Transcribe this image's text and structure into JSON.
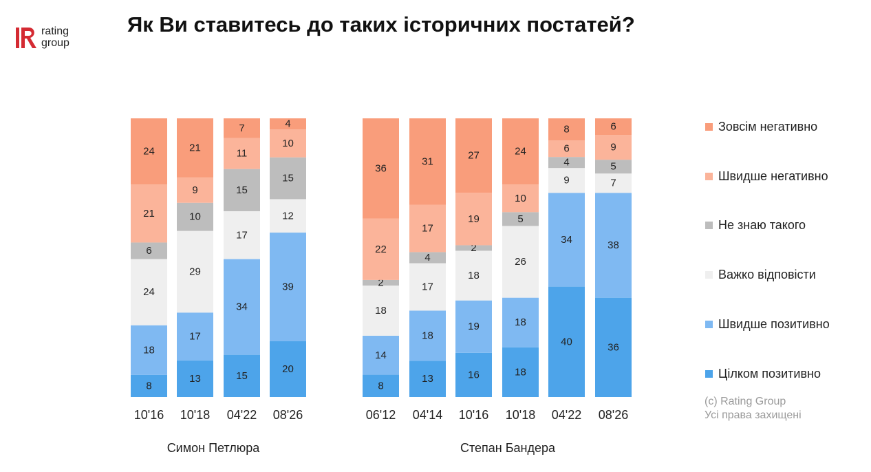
{
  "logo": {
    "word1": "rating",
    "word2": "group",
    "mark_letter": "R"
  },
  "title": "Як Ви ставитесь до таких історичних постатей?",
  "colors": {
    "very_negative": "#f99d7b",
    "rather_negative": "#fbb49a",
    "dont_know": "#bdbdbd",
    "hard_to_say": "#efefef",
    "rather_positive": "#7fb9f2",
    "fully_positive": "#4da4ea",
    "logo_red": "#d42a32"
  },
  "copyright": {
    "line1": "(c) Rating Group",
    "line2": "Усі права захищені"
  },
  "chart_data": {
    "type": "bar",
    "stacked": true,
    "percent_stacked": true,
    "legend_position": "right",
    "series_order_bottom_to_top": [
      "Цілком позитивно",
      "Швидше позитивно",
      "Важко відповісти",
      "Не знаю такого",
      "Швидше негативно",
      "Зовсім негативно"
    ],
    "legend": [
      "Зовсім негативно",
      "Швидше негативно",
      "Не знаю такого",
      "Важко відповісти",
      "Швидше позитивно",
      "Цілком позитивно"
    ],
    "groups": [
      {
        "name": "Симон Петлюра",
        "categories": [
          "10'16",
          "10'18",
          "04'22",
          "08'26"
        ],
        "series": [
          {
            "name": "Цілком позитивно",
            "values": [
              8,
              13,
              15,
              20
            ]
          },
          {
            "name": "Швидше позитивно",
            "values": [
              18,
              17,
              34,
              39
            ]
          },
          {
            "name": "Важко відповісти",
            "values": [
              24,
              29,
              17,
              12
            ]
          },
          {
            "name": "Не знаю такого",
            "values": [
              6,
              10,
              15,
              15
            ]
          },
          {
            "name": "Швидше негативно",
            "values": [
              21,
              9,
              11,
              10
            ]
          },
          {
            "name": "Зовсім негативно",
            "values": [
              24,
              21,
              7,
              4
            ]
          }
        ]
      },
      {
        "name": "Степан Бандера",
        "categories": [
          "06'12",
          "04'14",
          "10'16",
          "10'18",
          "04'22",
          "08'26"
        ],
        "series": [
          {
            "name": "Цілком позитивно",
            "values": [
              8,
              13,
              16,
              18,
              40,
              36
            ]
          },
          {
            "name": "Швидше позитивно",
            "values": [
              14,
              18,
              19,
              18,
              34,
              38
            ]
          },
          {
            "name": "Важко відповісти",
            "values": [
              18,
              17,
              18,
              26,
              9,
              7
            ]
          },
          {
            "name": "Не знаю такого",
            "values": [
              2,
              4,
              2,
              5,
              4,
              5
            ]
          },
          {
            "name": "Швидше негативно",
            "values": [
              22,
              17,
              19,
              10,
              6,
              9
            ]
          },
          {
            "name": "Зовсім негативно",
            "values": [
              36,
              31,
              27,
              24,
              8,
              6
            ]
          }
        ]
      }
    ]
  }
}
